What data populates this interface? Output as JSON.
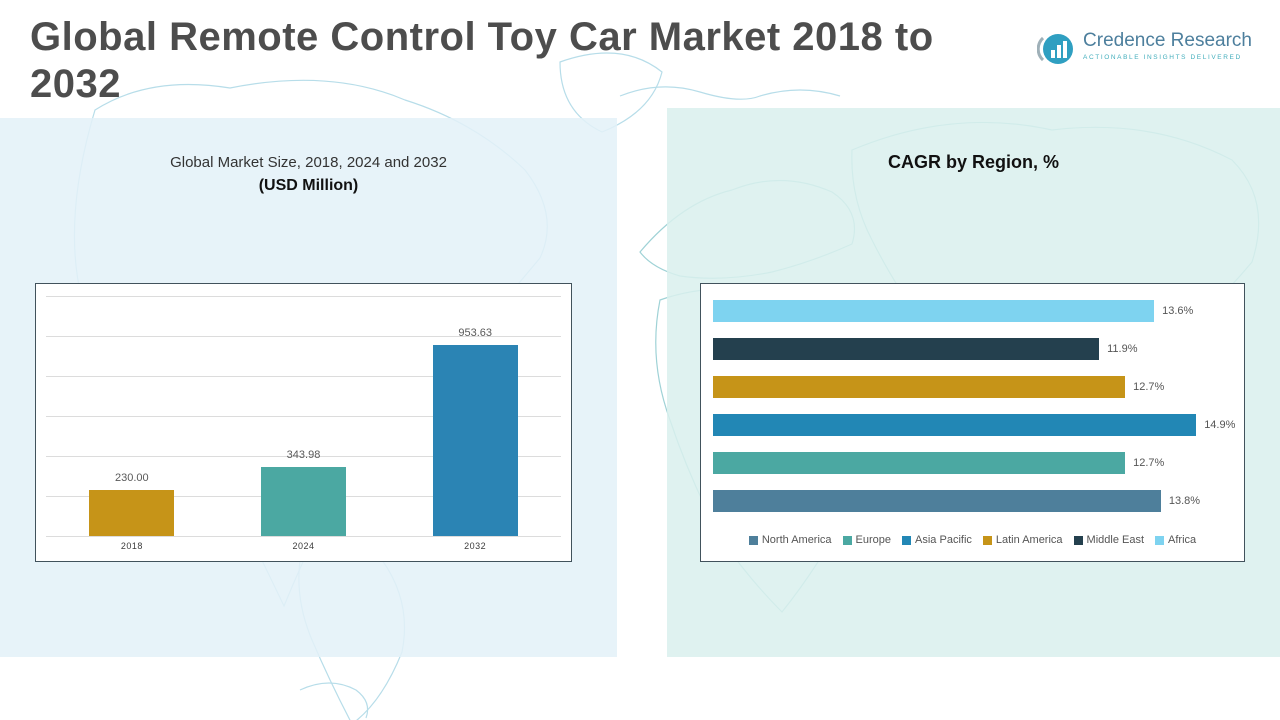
{
  "header": {
    "title": "Global Remote Control Toy Car Market 2018 to 2032"
  },
  "logo": {
    "name": "Credence Research",
    "tagline": "Actionable Insights Delivered",
    "icon_color": "#2f9fc1"
  },
  "left_panel": {
    "title_line1": "Global Market Size, 2018, 2024 and 2032",
    "title_line2": "(USD Million)"
  },
  "right_panel": {
    "title": "CAGR by Region, %"
  },
  "chart_data": [
    {
      "type": "bar",
      "orientation": "vertical",
      "title": "Global Market Size, 2018, 2024 and 2032 (USD Million)",
      "categories": [
        "2018",
        "2024",
        "2032"
      ],
      "values": [
        230.0,
        343.98,
        953.63
      ],
      "value_labels": [
        "230.00",
        "343.98",
        "953.63"
      ],
      "colors": [
        "#C69418",
        "#4BA8A2",
        "#2B84B4"
      ],
      "ylabel": "",
      "xlabel": "",
      "ylim": [
        0,
        1200
      ],
      "gridlines": 7,
      "grid": true,
      "legend_position": "none"
    },
    {
      "type": "bar",
      "orientation": "horizontal",
      "title": "CAGR by Region, %",
      "categories": [
        "Africa",
        "Middle East",
        "Latin America",
        "Asia Pacific",
        "Europe",
        "North America"
      ],
      "values": [
        13.6,
        11.9,
        12.7,
        14.9,
        12.7,
        13.8
      ],
      "value_labels": [
        "13.6%",
        "11.9%",
        "12.7%",
        "14.9%",
        "12.7%",
        "13.8%"
      ],
      "colors": [
        "#7ED3F0",
        "#24404E",
        "#C69418",
        "#2287B5",
        "#4BA8A2",
        "#4E7F9B"
      ],
      "xlim": [
        0,
        16
      ],
      "grid": false,
      "legend_position": "bottom",
      "legend": [
        "North America",
        "Europe",
        "Asia Pacific",
        "Latin America",
        "Middle East",
        "Africa"
      ],
      "legend_colors": [
        "#4E7F9B",
        "#4BA8A2",
        "#2287B5",
        "#C69418",
        "#24404E",
        "#7ED3F0"
      ]
    }
  ]
}
